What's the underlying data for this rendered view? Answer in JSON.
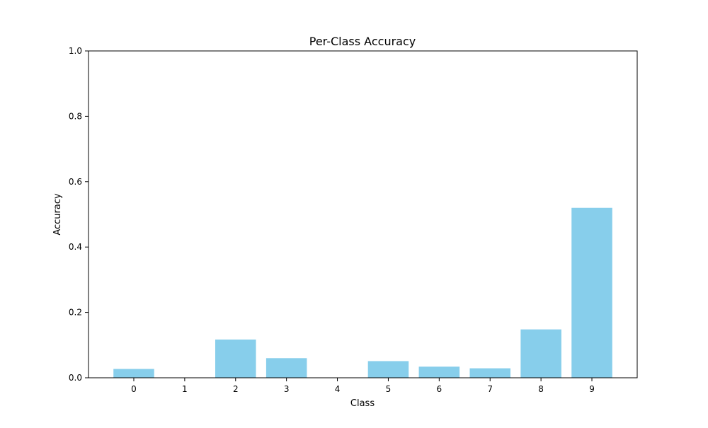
{
  "chart_data": {
    "type": "bar",
    "title": "Per-Class Accuracy",
    "xlabel": "Class",
    "ylabel": "Accuracy",
    "categories": [
      "0",
      "1",
      "2",
      "3",
      "4",
      "5",
      "6",
      "7",
      "8",
      "9"
    ],
    "values": [
      0.027,
      0.0,
      0.117,
      0.06,
      0.0,
      0.051,
      0.034,
      0.029,
      0.148,
      0.52
    ],
    "ylim": [
      0,
      1.0
    ],
    "yticks": [
      "0.0",
      "0.2",
      "0.4",
      "0.6",
      "0.8",
      "1.0"
    ],
    "bar_color": "#87ceeb",
    "grid": false,
    "legend": "none"
  }
}
